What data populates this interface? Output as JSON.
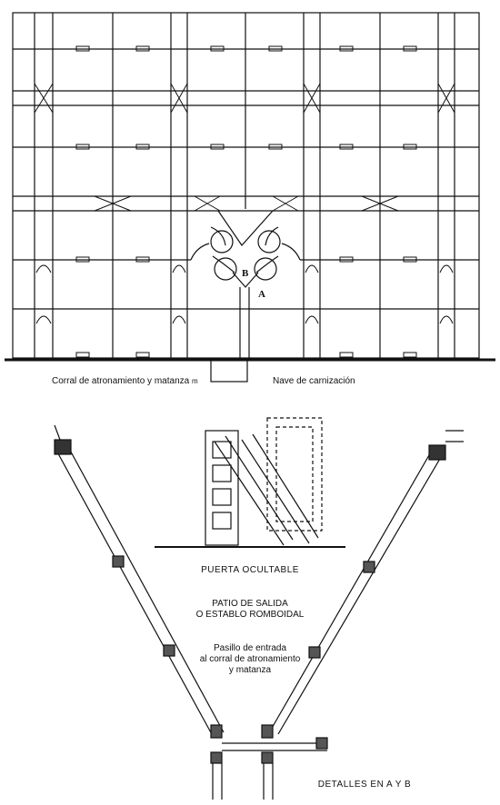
{
  "labels": {
    "corral": "Corral de atronamiento y matanza",
    "corral_suffix": "m",
    "nave": "Nave de carnización",
    "point_a": "A",
    "point_b": "B",
    "puerta": "PUERTA OCULTABLE",
    "patio_line1": "PATIO DE SALIDA",
    "patio_line2": "O ESTABLO ROMBOIDAL",
    "pasillo_line1": "Pasillo de entrada",
    "pasillo_line2": "al corral de atronamiento",
    "pasillo_line3": "y matanza",
    "detalles": "DETALLES EN A Y B"
  }
}
